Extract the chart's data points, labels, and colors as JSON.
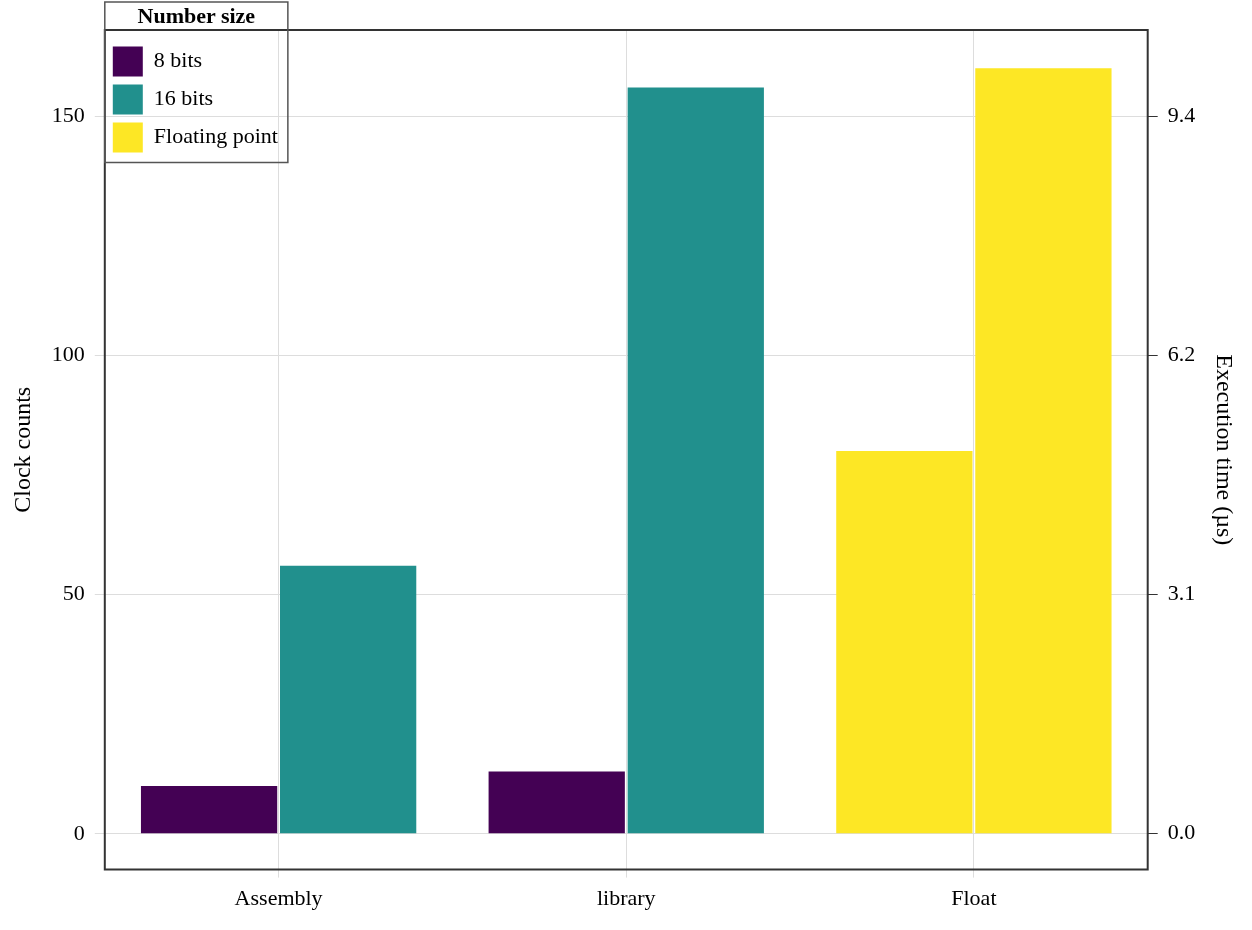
{
  "chart_data": {
    "type": "bar",
    "ylabel": "Clock counts",
    "y2label": "Execution time (µs)",
    "legend_title": "Number size",
    "categories": [
      "Assembly",
      "library",
      "Float"
    ],
    "series": [
      {
        "name": "8 bits",
        "color": "#440154",
        "values": [
          10,
          13,
          null
        ]
      },
      {
        "name": "16 bits",
        "color": "#21908d",
        "values": [
          56,
          156,
          null
        ]
      },
      {
        "name": "Floating point",
        "color": "#fde725",
        "values": [
          null,
          null,
          80
        ]
      },
      {
        "color": "#fde725",
        "values": [
          null,
          null,
          160
        ]
      }
    ],
    "ylim": [
      -7.5,
      168
    ],
    "yticks": [
      0,
      50,
      100,
      150
    ],
    "y2lim": [
      -0.47,
      10.5
    ],
    "y2ticks": [
      {
        "value": 0,
        "label": "0.0"
      },
      {
        "value": 3.125,
        "label": "3.1"
      },
      {
        "value": 6.25,
        "label": "6.2"
      },
      {
        "value": 9.375,
        "label": "9.4"
      }
    ],
    "grid": true,
    "legend": "top left"
  }
}
